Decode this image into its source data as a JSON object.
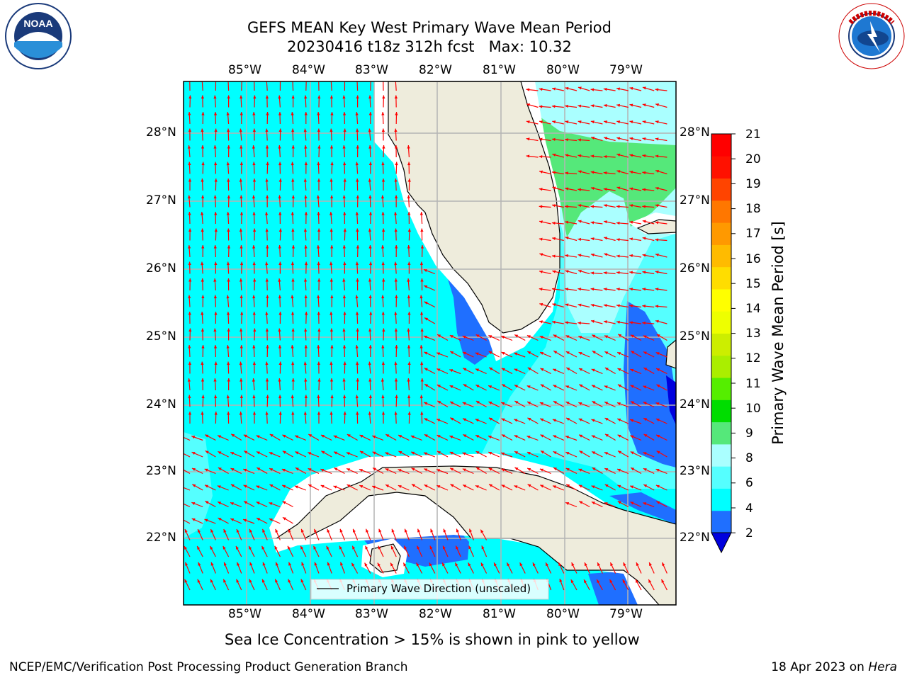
{
  "title_line1": "GEFS MEAN Key West Primary Wave Mean Period",
  "title_line2": "20230416 t18z 312h fcst   Max: 10.32",
  "lon_labels": [
    "85°W",
    "84°W",
    "83°W",
    "82°W",
    "81°W",
    "80°W",
    "79°W"
  ],
  "lat_labels": [
    "28°N",
    "27°N",
    "26°N",
    "25°N",
    "24°N",
    "23°N",
    "22°N"
  ],
  "colorbar": {
    "label": "Primary Wave Mean Period [s]",
    "ticks": [
      "21",
      "20",
      "19",
      "18",
      "17",
      "16",
      "15",
      "14",
      "13",
      "12",
      "11",
      "10",
      "9",
      "8",
      "6",
      "4",
      "2"
    ],
    "colors": [
      "#1f6fff",
      "#00ffff",
      "#55ffff",
      "#aaffff",
      "#55e87a",
      "#00dd00",
      "#55ee00",
      "#aaee00",
      "#ccee00",
      "#eeff00",
      "#ffff00",
      "#ffdd00",
      "#ffbb00",
      "#ff9900",
      "#ff7700",
      "#ff4400",
      "#ff1100",
      "#ff0000"
    ]
  },
  "legend_label": "Primary Wave Direction (unscaled)",
  "sea_ice_note": "Sea Ice Concentration > 15% is shown in pink to yellow",
  "footer_left": "NCEP/EMC/Verification Post Processing Product Generation Branch",
  "footer_date": "18 Apr 2023 on ",
  "footer_host": "Hera",
  "logos": {
    "noaa_text": "NOAA",
    "nws_text": "NATIONAL WEATHER SERVICE"
  }
}
